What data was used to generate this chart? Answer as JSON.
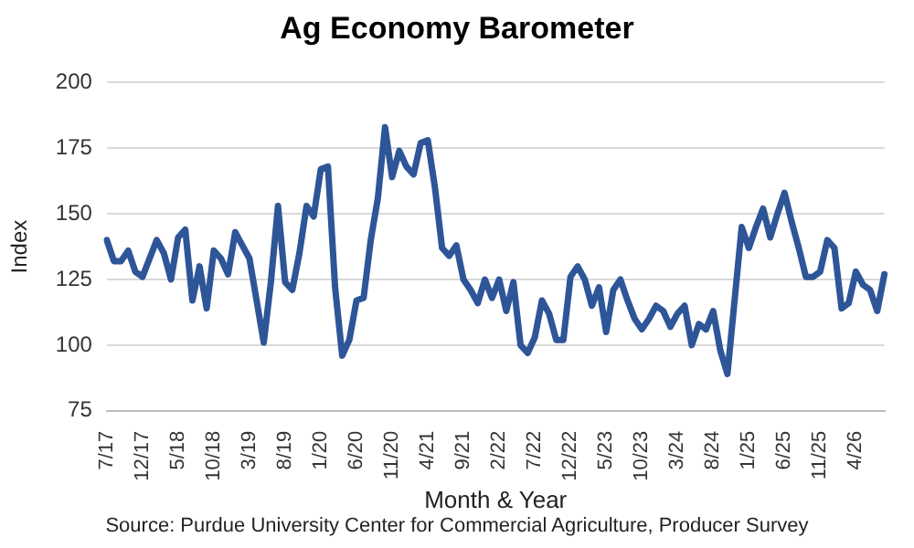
{
  "chart_data": {
    "type": "line",
    "title": "Ag Economy Barometer",
    "xlabel": "Month & Year",
    "ylabel": "Index",
    "annotations": [
      "Source: Purdue University Center for Commercial Agriculture, Producer Survey"
    ],
    "categories": [
      "7/17",
      null,
      null,
      null,
      null,
      "12/17",
      null,
      null,
      null,
      null,
      "5/18",
      null,
      null,
      null,
      null,
      "10/18",
      null,
      null,
      null,
      null,
      "3/19",
      null,
      null,
      null,
      null,
      "8/19",
      null,
      null,
      null,
      null,
      "1/20",
      null,
      null,
      null,
      null,
      "6/20",
      null,
      null,
      null,
      null,
      "11/20",
      null,
      null,
      null,
      null,
      "4/21",
      null,
      null,
      null,
      null,
      "9/21",
      null,
      null,
      null,
      null,
      "2/22",
      null,
      null,
      null,
      null,
      "7/22",
      null,
      null,
      null,
      null,
      "12/22",
      null,
      null,
      null,
      null,
      "5/23",
      null,
      null,
      null,
      null,
      "10/23",
      null,
      null,
      null,
      null,
      "3/24",
      null,
      null,
      null,
      null,
      "8/24",
      null,
      null,
      null,
      null,
      "1/25",
      null,
      null,
      null,
      null,
      "6/25",
      null,
      null,
      null,
      null,
      "11/25",
      null,
      null,
      null,
      null,
      "4/26",
      null,
      null,
      null,
      null
    ],
    "series": [
      {
        "color": "#2e5597",
        "values": [
          140,
          132,
          132,
          136,
          128,
          126,
          133,
          140,
          135,
          125,
          141,
          144,
          117,
          130,
          114,
          136,
          133,
          127,
          143,
          138,
          133,
          117,
          101,
          124,
          153,
          124,
          121,
          135,
          153,
          149,
          167,
          168,
          122,
          96,
          102,
          117,
          118,
          140,
          156,
          183,
          164,
          174,
          168,
          165,
          177,
          178,
          160,
          137,
          134,
          138,
          125,
          121,
          116,
          125,
          118,
          125,
          113,
          124,
          100,
          97,
          103,
          117,
          112,
          102,
          102,
          126,
          130,
          125,
          115,
          122,
          105,
          121,
          125,
          117,
          110,
          106,
          110,
          115,
          113,
          107,
          112,
          115,
          100,
          108,
          106,
          113,
          98,
          89,
          117,
          145,
          137,
          145,
          152,
          141,
          150,
          158,
          147,
          137,
          126,
          126,
          128,
          140,
          137,
          114,
          116,
          128,
          123,
          121,
          113,
          127
        ]
      }
    ],
    "ylim": [
      75,
      200
    ],
    "yticks": [
      75,
      100,
      125,
      150,
      175,
      200
    ],
    "grid": "y",
    "line_style": "solid",
    "marker": "none"
  }
}
